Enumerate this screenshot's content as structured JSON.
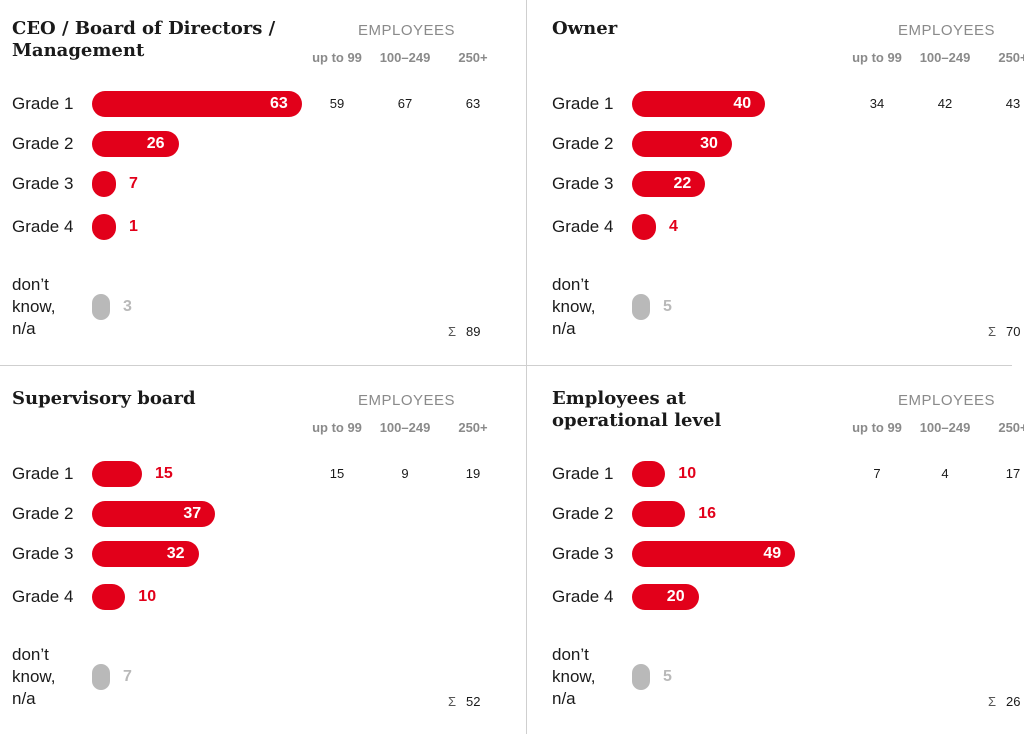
{
  "employees_header": "EMPLOYEES",
  "size_labels": [
    "up to 99",
    "100–249",
    "250+"
  ],
  "sigma": "Σ",
  "colors": {
    "accent": "#e2001a",
    "na": "#b9b9b9"
  },
  "chart_data": [
    {
      "type": "bar",
      "title": "CEO / Board of Directors /\nManagement",
      "categories": [
        "Grade 1",
        "Grade 2",
        "Grade 3",
        "Grade 4",
        "don’t\nknow,\nn/a"
      ],
      "values": [
        63,
        26,
        7,
        1,
        3
      ],
      "grade1_by_size": [
        "59",
        "67",
        "63"
      ],
      "total": "89"
    },
    {
      "type": "bar",
      "title": "Owner",
      "categories": [
        "Grade 1",
        "Grade 2",
        "Grade 3",
        "Grade 4",
        "don’t\nknow,\nn/a"
      ],
      "values": [
        40,
        30,
        22,
        4,
        5
      ],
      "grade1_by_size": [
        "34",
        "42",
        "43"
      ],
      "total": "70"
    },
    {
      "type": "bar",
      "title": "Supervisory board",
      "categories": [
        "Grade 1",
        "Grade 2",
        "Grade 3",
        "Grade 4",
        "don’t\nknow,\nn/a"
      ],
      "values": [
        15,
        37,
        32,
        10,
        7
      ],
      "grade1_by_size": [
        "15",
        "9",
        "19"
      ],
      "total": "52"
    },
    {
      "type": "bar",
      "title": "Employees at\noperational level",
      "categories": [
        "Grade 1",
        "Grade 2",
        "Grade 3",
        "Grade 4",
        "don’t\nknow,\nn/a"
      ],
      "values": [
        10,
        16,
        49,
        20,
        5
      ],
      "grade1_by_size": [
        "7",
        "4",
        "17"
      ],
      "total": "26"
    }
  ]
}
